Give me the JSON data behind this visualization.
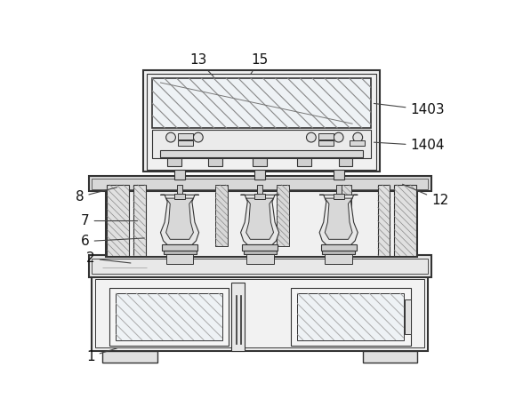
{
  "bg_color": "#ffffff",
  "line_color": "#333333",
  "figsize": [
    5.7,
    4.67
  ],
  "dpi": 100
}
